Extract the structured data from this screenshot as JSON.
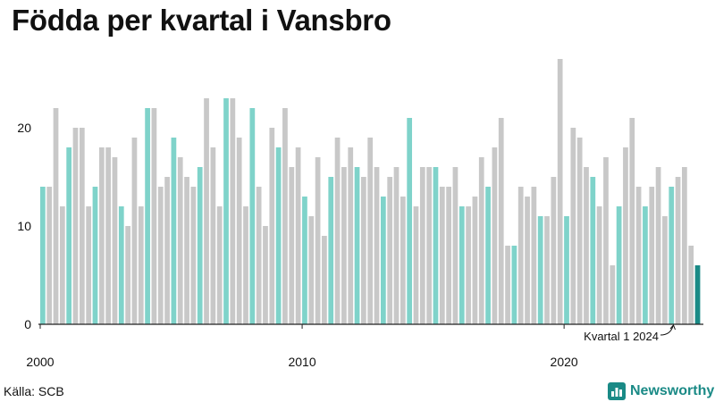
{
  "title": "Födda per kvartal i Vansbro",
  "source": "Källa: SCB",
  "brand": "Newsworthy",
  "chart_data": {
    "type": "bar",
    "title": "Födda per kvartal i Vansbro",
    "xlabel": "",
    "ylabel": "",
    "ylim": [
      0,
      28
    ],
    "yticks": [
      0,
      10,
      20
    ],
    "xtick_labels": [
      {
        "label": "2000",
        "year": 2000
      },
      {
        "label": "2010",
        "year": 2010
      },
      {
        "label": "2020",
        "year": 2020
      }
    ],
    "start_year": 2000,
    "start_quarter": 1,
    "colors": {
      "q1": "#7fd3ca",
      "other": "#c8c8c8",
      "latest": "#1a8a86",
      "axis": "#222222"
    },
    "annotation": "Kvartal 1 2024",
    "values": [
      14,
      14,
      22,
      12,
      18,
      20,
      20,
      12,
      14,
      18,
      18,
      17,
      12,
      10,
      19,
      12,
      22,
      22,
      14,
      15,
      19,
      17,
      15,
      14,
      16,
      23,
      18,
      12,
      23,
      23,
      19,
      12,
      22,
      14,
      10,
      20,
      18,
      22,
      16,
      18,
      13,
      11,
      17,
      9,
      15,
      19,
      16,
      18,
      16,
      15,
      19,
      16,
      13,
      15,
      16,
      13,
      21,
      12,
      16,
      16,
      16,
      14,
      14,
      16,
      12,
      12,
      13,
      17,
      14,
      18,
      21,
      8,
      8,
      14,
      13,
      14,
      11,
      11,
      15,
      27,
      11,
      20,
      19,
      16,
      15,
      12,
      17,
      6,
      12,
      18,
      21,
      14,
      12,
      14,
      16,
      11,
      14,
      15,
      16,
      8,
      6
    ]
  }
}
